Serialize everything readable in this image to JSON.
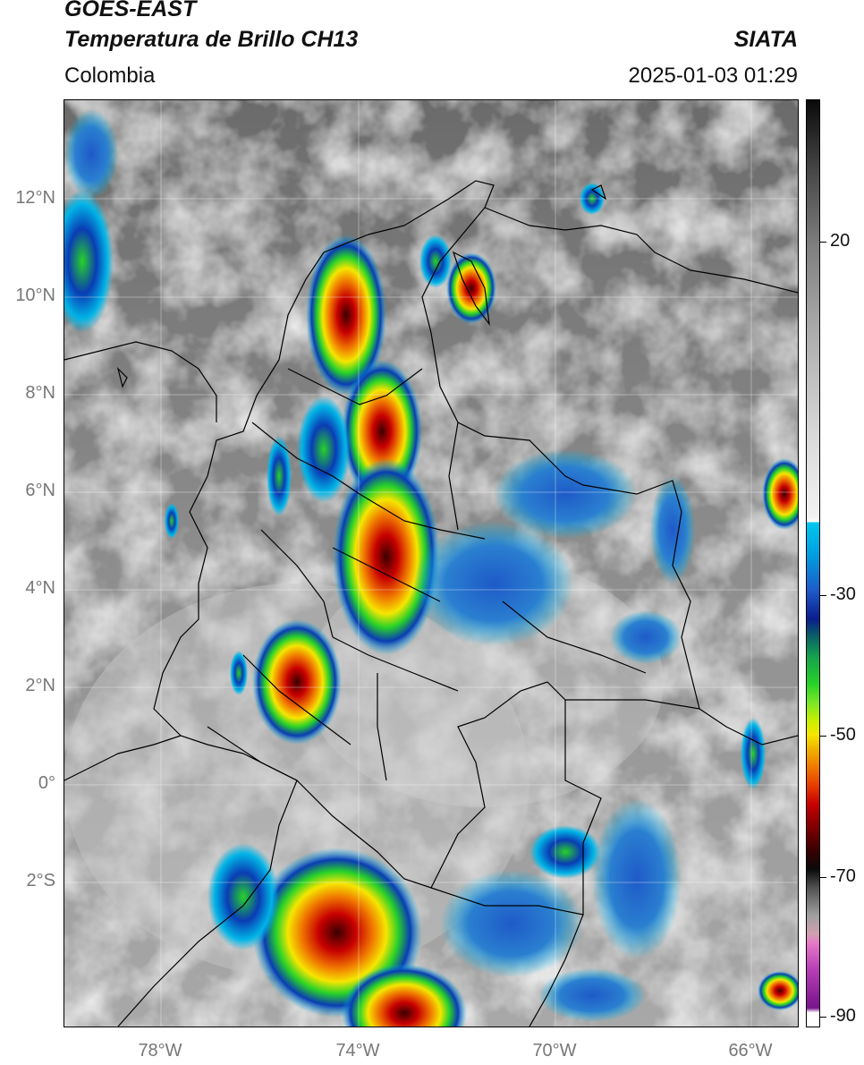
{
  "header": {
    "satellite": "GOES-EAST",
    "product": "Temperatura de Brillo CH13",
    "region": "Colombia",
    "organization": "SIATA",
    "datetime": "2025-01-03 01:29"
  },
  "map": {
    "lat_labels": [
      "12°N",
      "10°N",
      "8°N",
      "6°N",
      "4°N",
      "2°N",
      "0°",
      "2°S"
    ],
    "lon_labels": [
      "78°W",
      "74°W",
      "70°W",
      "66°W"
    ],
    "extent": {
      "lon_min": -80,
      "lon_max": -64.9,
      "lat_min": -5.0,
      "lat_max": 14.0
    }
  },
  "colorbar": {
    "ticks": [
      "20",
      "-30",
      "-50",
      "-70",
      "-90"
    ],
    "range": [
      -92,
      34
    ],
    "colors": {
      "warm_gray": "#dcdcdc",
      "cold_cyan": "#00b4e6",
      "blue": "#0a3cb4",
      "green": "#28d228",
      "yellow": "#f5e600",
      "orange": "#f07800",
      "red": "#c80000",
      "black": "#0a0a0a",
      "magenta": "#b43cb4"
    }
  }
}
